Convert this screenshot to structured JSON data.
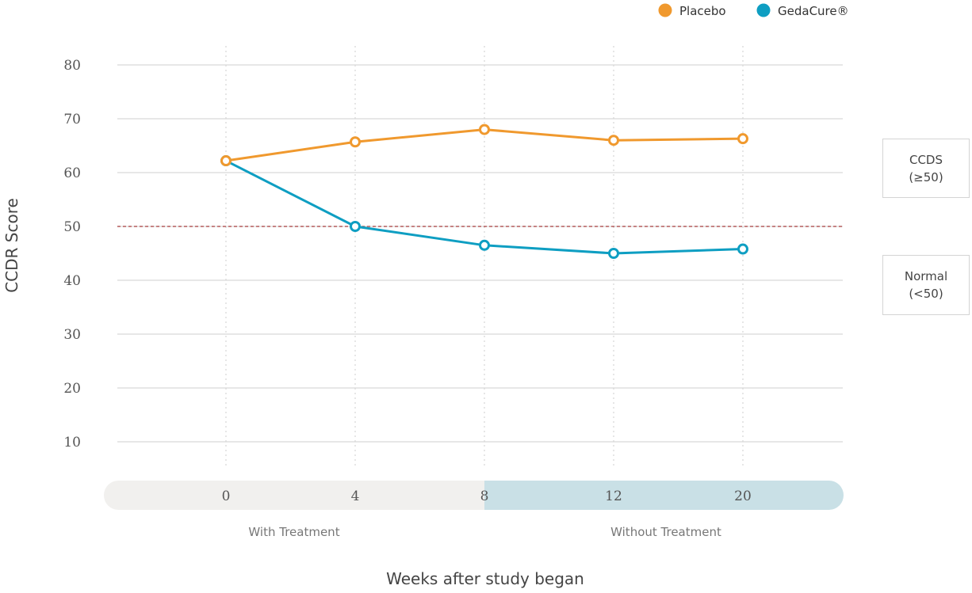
{
  "chart_data": {
    "type": "line",
    "title": "",
    "xlabel": "Weeks after study began",
    "ylabel": "CCDR Score",
    "categories": [
      "0",
      "4",
      "8",
      "12",
      "20"
    ],
    "yticks": [
      10,
      20,
      30,
      40,
      50,
      60,
      70,
      80
    ],
    "ylim": [
      4,
      84
    ],
    "grid": true,
    "legend_position": "top-right",
    "series": [
      {
        "name": "Placebo",
        "color": "#f0992e",
        "values": [
          62.2,
          65.7,
          68.0,
          66.0,
          66.3
        ]
      },
      {
        "name": "GedaCure®",
        "color": "#0e9ec2",
        "values": [
          62.2,
          50.0,
          46.5,
          45.0,
          45.8
        ]
      }
    ],
    "threshold": {
      "value": 50,
      "color": "#a33a3a"
    },
    "phases": [
      {
        "label": "With Treatment",
        "from": "0",
        "to": "8",
        "color": "#f1f0ee"
      },
      {
        "label": "Without Treatment",
        "from": "8",
        "to": "20",
        "color": "#c9e0e6"
      }
    ],
    "zones": [
      {
        "name": "CCDS",
        "range": "(≥50)"
      },
      {
        "name": "Normal",
        "range": "(<50)"
      }
    ]
  }
}
